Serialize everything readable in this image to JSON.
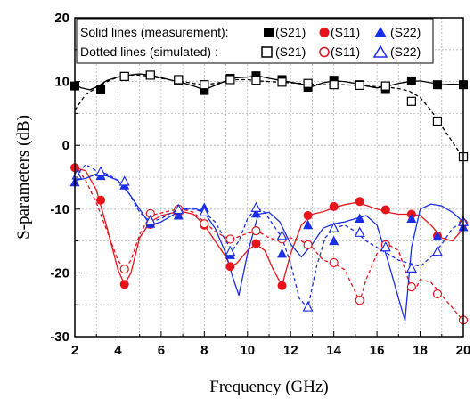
{
  "chart_data": {
    "type": "line",
    "title": "",
    "xlabel": "Frequency (GHz)",
    "ylabel": "S-parameters (dB)",
    "xlim": [
      2,
      20
    ],
    "ylim": [
      -30,
      20
    ],
    "xticks": [
      2,
      4,
      6,
      8,
      10,
      12,
      14,
      16,
      18,
      20
    ],
    "yticks": [
      -30,
      -20,
      -10,
      0,
      10,
      20
    ],
    "grid": true,
    "legend_position": "top",
    "legend": {
      "row1_label": "Solid lines (measurement):",
      "row2_label": "Dotted lines (simulated) :",
      "s21": "(S21)",
      "s11": "(S11)",
      "s22": "(S22)"
    },
    "series": [
      {
        "key": "s21_meas",
        "color": "#000000",
        "style": "solid",
        "marker": "square-filled",
        "x": [
          2,
          2.3,
          2.7,
          3.1,
          3.5,
          4.0,
          4.5,
          5.0,
          5.5,
          6.0,
          6.5,
          7.0,
          7.5,
          8.0,
          8.5,
          9.0,
          9.5,
          10.0,
          10.5,
          11.0,
          11.5,
          12.0,
          12.5,
          13.0,
          13.5,
          14.0,
          14.5,
          15.0,
          15.5,
          16.0,
          16.5,
          17.0,
          17.5,
          18.0,
          18.5,
          19.0,
          19.5,
          20.0
        ],
        "y": [
          9.5,
          9.0,
          8.7,
          9.3,
          10.2,
          10.7,
          11.0,
          11.2,
          11.0,
          10.6,
          10.2,
          9.8,
          9.3,
          8.7,
          9.4,
          10.1,
          10.6,
          10.7,
          10.9,
          10.5,
          10.2,
          9.9,
          9.6,
          9.2,
          9.8,
          10.1,
          10.0,
          9.7,
          9.3,
          9.0,
          9.3,
          9.7,
          10.0,
          10.1,
          9.8,
          9.5,
          9.6,
          9.5
        ],
        "marker_x": [
          2,
          3.2,
          4.3,
          5.5,
          6.8,
          8.0,
          9.2,
          10.4,
          11.6,
          12.8,
          14.0,
          15.2,
          16.4,
          17.6,
          18.8,
          20
        ],
        "marker_y": [
          9.3,
          8.7,
          10.8,
          11.0,
          10.2,
          8.6,
          10.5,
          10.9,
          10.3,
          9.1,
          10.2,
          9.5,
          8.9,
          10.1,
          9.5,
          9.5
        ]
      },
      {
        "key": "s11_meas",
        "color": "#e8141b",
        "style": "solid",
        "marker": "circle-filled",
        "x": [
          2,
          2.5,
          3.0,
          3.5,
          4.0,
          4.3,
          4.6,
          5.0,
          5.5,
          6.0,
          6.5,
          7.0,
          7.5,
          8.0,
          8.5,
          9.0,
          9.2,
          9.5,
          10.0,
          10.4,
          10.8,
          11.2,
          11.6,
          12.0,
          12.5,
          13.0,
          13.5,
          14.0,
          14.5,
          15.0,
          15.5,
          16.0,
          16.5,
          17.0,
          17.5,
          18.0,
          18.5,
          19.0,
          19.5,
          20.0
        ],
        "y": [
          -3.5,
          -4.0,
          -7.0,
          -13.0,
          -19.5,
          -21.8,
          -20.0,
          -14.5,
          -12.0,
          -11.0,
          -10.6,
          -10.4,
          -10.8,
          -12.5,
          -15.0,
          -17.5,
          -19.0,
          -18.5,
          -16.5,
          -15.5,
          -16.5,
          -19.5,
          -22.0,
          -17.0,
          -12.5,
          -10.8,
          -10.4,
          -9.8,
          -9.3,
          -9.0,
          -9.4,
          -10.0,
          -10.5,
          -10.8,
          -10.8,
          -11.0,
          -12.5,
          -14.5,
          -15.0,
          -13.0
        ],
        "marker_x": [
          2,
          3.2,
          4.3,
          5.5,
          6.8,
          8.0,
          9.2,
          10.4,
          11.6,
          12.8,
          14.0,
          15.2,
          16.4,
          17.6,
          18.8,
          20
        ],
        "marker_y": [
          -3.5,
          -8.6,
          -21.8,
          -12.4,
          -10.5,
          -12.5,
          -19.0,
          -15.4,
          -22.0,
          -11.0,
          -9.6,
          -8.8,
          -10.1,
          -10.8,
          -14.2,
          -12.2
        ]
      },
      {
        "key": "s22_meas",
        "color": "#1a2ee8",
        "style": "solid",
        "marker": "triangle-filled",
        "x": [
          2,
          2.5,
          3.0,
          3.5,
          4.0,
          4.5,
          5.0,
          5.5,
          6.0,
          6.5,
          7.0,
          7.5,
          8.0,
          8.5,
          9.0,
          9.3,
          9.6,
          10.0,
          10.5,
          11.0,
          11.5,
          12.0,
          12.5,
          13.0,
          13.5,
          14.0,
          14.5,
          15.0,
          15.5,
          16.0,
          16.5,
          17.0,
          17.3,
          17.6,
          18.0,
          18.5,
          19.0,
          19.5,
          20.0
        ],
        "y": [
          -5.5,
          -5.2,
          -4.5,
          -4.8,
          -5.5,
          -7.5,
          -10.0,
          -12.5,
          -12.0,
          -11.0,
          -10.0,
          -9.8,
          -10.5,
          -13.0,
          -17.0,
          -20.5,
          -23.5,
          -17.0,
          -10.8,
          -10.5,
          -12.0,
          -15.5,
          -17.5,
          -15.5,
          -13.0,
          -12.3,
          -12.0,
          -11.5,
          -11.0,
          -12.5,
          -18.0,
          -24.0,
          -27.5,
          -16.0,
          -10.0,
          -9.2,
          -9.5,
          -10.5,
          -12.0
        ],
        "marker_x": [
          2,
          3.2,
          4.3,
          5.5,
          6.8,
          8.0,
          9.2,
          10.4,
          11.6,
          12.8,
          14.0,
          15.2,
          16.4,
          17.6,
          18.8,
          20
        ],
        "marker_y": [
          -5.8,
          -4.8,
          -6.3,
          -12.3,
          -11.0,
          -9.8,
          -17.2,
          -10.7,
          -17.0,
          -12.5,
          -15.0,
          -11.5,
          -15.9,
          -11.5,
          -14.3,
          -12.8
        ]
      },
      {
        "key": "s21_sim",
        "color": "#000000",
        "style": "dashed",
        "marker": "square-open",
        "x": [
          2,
          2.5,
          3.0,
          3.5,
          4.0,
          4.5,
          5.0,
          5.5,
          6.0,
          6.5,
          7.0,
          7.5,
          8.0,
          8.5,
          9.0,
          9.5,
          10.0,
          10.5,
          11.0,
          11.5,
          12.0,
          12.5,
          13.0,
          13.5,
          14.0,
          14.5,
          15.0,
          15.5,
          16.0,
          16.5,
          17.0,
          17.5,
          18.0,
          18.5,
          19.0,
          19.5,
          20.0
        ],
        "y": [
          5.5,
          8.0,
          9.0,
          10.0,
          10.7,
          11.0,
          11.0,
          10.8,
          10.5,
          10.2,
          10.0,
          9.7,
          9.5,
          9.7,
          10.0,
          10.3,
          10.3,
          10.1,
          10.0,
          9.9,
          9.8,
          9.7,
          9.6,
          9.5,
          9.5,
          9.5,
          9.4,
          9.3,
          9.2,
          9.1,
          8.9,
          8.5,
          7.5,
          5.5,
          3.0,
          0.5,
          -2.0
        ],
        "marker_x": [
          4.3,
          5.5,
          6.8,
          8.0,
          9.2,
          10.4,
          11.6,
          12.8,
          14.0,
          15.2,
          16.4,
          17.6,
          18.8,
          20
        ],
        "marker_y": [
          10.8,
          11.0,
          10.3,
          9.5,
          10.3,
          10.2,
          9.9,
          9.7,
          9.5,
          9.4,
          9.3,
          6.9,
          3.8,
          -1.8
        ]
      },
      {
        "key": "s11_sim",
        "color": "#e8141b",
        "style": "dashed",
        "marker": "circle-open",
        "x": [
          2,
          2.5,
          3.0,
          3.5,
          4.0,
          4.3,
          4.6,
          5.0,
          5.5,
          6.0,
          6.5,
          7.0,
          7.5,
          8.0,
          8.5,
          9.0,
          9.3,
          9.6,
          10.0,
          10.5,
          11.0,
          11.5,
          12.0,
          12.5,
          13.0,
          13.5,
          14.0,
          14.5,
          15.0,
          15.2,
          15.5,
          16.0,
          16.5,
          17.0,
          17.5,
          17.8,
          18.0,
          18.5,
          19.0,
          19.5,
          20.0
        ],
        "y": [
          -3.0,
          -5.5,
          -9.0,
          -13.5,
          -18.0,
          -19.5,
          -18.0,
          -14.0,
          -11.0,
          -10.6,
          -10.2,
          -10.0,
          -10.5,
          -12.0,
          -13.5,
          -14.5,
          -14.8,
          -14.3,
          -13.8,
          -13.5,
          -14.5,
          -15.0,
          -14.5,
          -15.0,
          -16.0,
          -18.0,
          -18.5,
          -19.5,
          -23.0,
          -24.5,
          -21.0,
          -17.0,
          -15.5,
          -16.5,
          -21.5,
          -22.5,
          -21.0,
          -21.5,
          -23.5,
          -25.5,
          -27.5
        ],
        "marker_x": [
          4.3,
          5.5,
          6.8,
          8.0,
          9.2,
          10.4,
          11.6,
          12.8,
          14.0,
          15.2,
          16.4,
          17.6,
          18.8,
          20
        ],
        "marker_y": [
          -19.4,
          -10.7,
          -10.0,
          -12.3,
          -14.7,
          -13.4,
          -14.7,
          -15.6,
          -18.4,
          -24.3,
          -15.6,
          -22.2,
          -23.3,
          -27.4
        ]
      },
      {
        "key": "s22_sim",
        "color": "#1a2ee8",
        "style": "dashed",
        "marker": "triangle-open",
        "x": [
          2,
          2.5,
          3.0,
          3.5,
          4.0,
          4.5,
          5.0,
          5.5,
          6.0,
          6.5,
          7.0,
          7.5,
          8.0,
          8.5,
          9.0,
          9.3,
          9.6,
          10.0,
          10.4,
          10.8,
          11.2,
          11.6,
          12.0,
          12.4,
          12.8,
          13.2,
          13.6,
          14.0,
          14.5,
          15.0,
          15.5,
          16.0,
          16.5,
          17.0,
          17.5,
          18.0,
          18.5,
          19.0,
          19.5,
          20.0
        ],
        "y": [
          -5.0,
          -3.0,
          -4.0,
          -4.5,
          -5.5,
          -7.5,
          -10.5,
          -12.0,
          -11.5,
          -10.5,
          -10.0,
          -10.0,
          -10.5,
          -12.0,
          -15.0,
          -16.5,
          -15.0,
          -11.5,
          -9.8,
          -10.5,
          -12.5,
          -14.5,
          -18.5,
          -24.0,
          -25.5,
          -19.0,
          -14.5,
          -13.0,
          -12.5,
          -13.5,
          -15.0,
          -16.0,
          -17.0,
          -18.0,
          -18.5,
          -19.0,
          -17.5,
          -15.5,
          -13.0,
          -12.0
        ],
        "marker_x": [
          2.1,
          3.2,
          4.3,
          5.5,
          6.8,
          8.0,
          9.2,
          10.4,
          11.6,
          12.8,
          14.0,
          15.2,
          16.4,
          17.6,
          18.8,
          20
        ],
        "marker_y": [
          -4.7,
          -4.2,
          -5.7,
          -11.8,
          -10.1,
          -10.5,
          -16.7,
          -9.8,
          -14.2,
          -25.4,
          -13.0,
          -13.7,
          -16.0,
          -19.3,
          -16.7,
          -12.0
        ]
      }
    ]
  }
}
